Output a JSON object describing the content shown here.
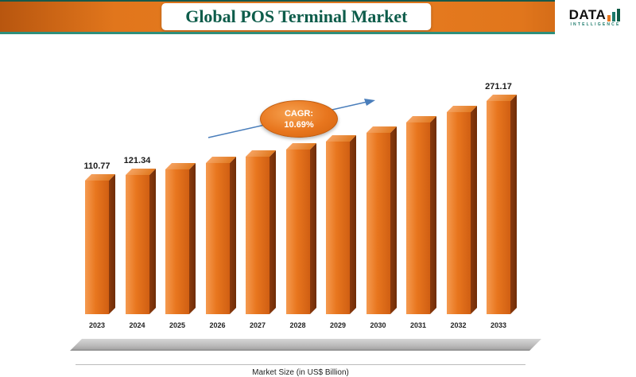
{
  "header": {
    "title": "Global POS Terminal Market"
  },
  "logo": {
    "name": "DATA",
    "tagline": "INTELLIGENCE"
  },
  "chart_data": {
    "type": "bar",
    "title": "Global POS Terminal Market",
    "categories": [
      "2023",
      "2024",
      "2025",
      "2026",
      "2027",
      "2028",
      "2029",
      "2030",
      "2031",
      "2032",
      "2033"
    ],
    "values": [
      110.77,
      121.34,
      132.7,
      145.2,
      158.8,
      173.6,
      189.9,
      207.7,
      227.2,
      248.5,
      271.17
    ],
    "value_labels": [
      "110.77",
      "121.34",
      "",
      "",
      "",
      "",
      "",
      "",
      "",
      "",
      "271.17"
    ],
    "xlabel": "Market Size (in US$ Billion)",
    "ylabel": "",
    "legend": "none",
    "grid": false,
    "annotation": {
      "label": "CAGR:",
      "value": "10.69%"
    }
  },
  "colors": {
    "bar_front": "#e8761e",
    "bar_side": "#7e340c",
    "bar_top": "#f09a50",
    "header_orange": "#e1761c",
    "title_text": "#0d5c4a",
    "teal_line": "#2e8f7b",
    "arrow": "#4a7ebb",
    "logo_bar1": "#e8761e",
    "logo_bar2": "#1d7a6b",
    "logo_bar3": "#0f5b46"
  }
}
